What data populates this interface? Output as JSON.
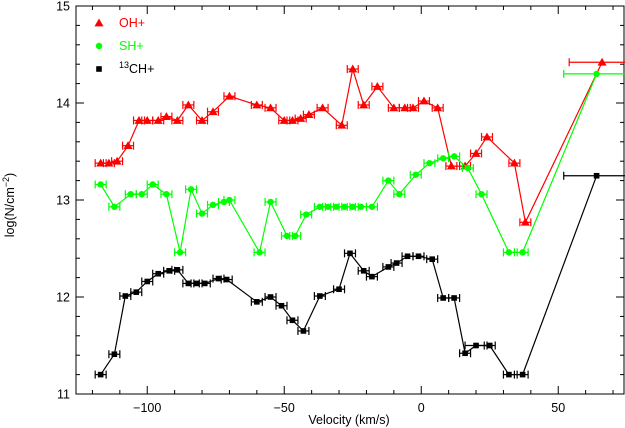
{
  "chart_data": {
    "type": "scatter",
    "xlabel": "Velocity (km/s)",
    "ylabel_prefix": "log(N/cm",
    "ylabel_sup": "−2",
    "ylabel_suffix": ")",
    "xlim": [
      -126,
      74
    ],
    "ylim": [
      11,
      15
    ],
    "xticks": [
      -100,
      -50,
      0,
      50
    ],
    "xtick_labels": [
      "−100",
      "−50",
      "0",
      "50"
    ],
    "yticks": [
      11,
      12,
      13,
      14,
      15
    ],
    "ytick_labels": [
      "11",
      "12",
      "13",
      "14",
      "15"
    ],
    "legend_position": "top-left",
    "series": [
      {
        "name": "OH+",
        "legend_sup": "",
        "legend_text": "OH+",
        "color": "#ff0000",
        "marker": "triangle",
        "half_width": 2,
        "x": [
          -117,
          -114,
          -111,
          -107,
          -103,
          -100,
          -96,
          -93,
          -89,
          -85,
          -80,
          -76,
          -70,
          -60,
          -55,
          -50,
          -47,
          -44,
          -41,
          -36,
          -29,
          -25,
          -21,
          -16,
          -10,
          -6,
          -3,
          1,
          6,
          11,
          16,
          20,
          24,
          34,
          38,
          66
        ],
        "y": [
          13.38,
          13.38,
          13.4,
          13.56,
          13.82,
          13.82,
          13.82,
          13.86,
          13.82,
          13.98,
          13.82,
          13.91,
          14.07,
          13.98,
          13.95,
          13.82,
          13.82,
          13.84,
          13.88,
          13.95,
          13.77,
          14.35,
          13.98,
          14.17,
          13.95,
          13.95,
          13.95,
          14.02,
          13.95,
          13.35,
          13.35,
          13.48,
          13.65,
          13.38,
          12.77,
          14.42
        ],
        "xerr": [
          [
            0,
            0
          ],
          [
            0,
            0
          ],
          [
            0,
            0
          ],
          [
            0,
            0
          ],
          [
            0,
            0
          ],
          [
            0,
            0
          ],
          [
            0,
            0
          ],
          [
            0,
            0
          ],
          [
            0,
            0
          ],
          [
            0,
            0
          ],
          [
            0,
            0
          ],
          [
            0,
            0
          ],
          [
            0,
            0
          ],
          [
            0,
            0
          ],
          [
            0,
            0
          ],
          [
            0,
            0
          ],
          [
            0,
            0
          ],
          [
            0,
            0
          ],
          [
            0,
            0
          ],
          [
            0,
            0
          ],
          [
            0,
            0
          ],
          [
            0,
            0
          ],
          [
            0,
            0
          ],
          [
            0,
            0
          ],
          [
            0,
            0
          ],
          [
            0,
            0
          ],
          [
            0,
            0
          ],
          [
            0,
            0
          ],
          [
            0,
            0
          ],
          [
            0,
            0
          ],
          [
            0,
            0
          ],
          [
            0,
            0
          ],
          [
            0,
            0
          ],
          [
            0,
            0
          ],
          [
            0,
            0
          ],
          [
            10,
            10
          ]
        ]
      },
      {
        "name": "SH+",
        "legend_sup": "",
        "legend_text": "SH+",
        "color": "#00ff00",
        "marker": "circle",
        "half_width": 2,
        "x": [
          -117,
          -112,
          -106,
          -102,
          -98,
          -93,
          -88,
          -84,
          -80,
          -76,
          -72,
          -70,
          -59,
          -55,
          -49,
          -46,
          -42,
          -37,
          -34,
          -31,
          -28,
          -25,
          -22,
          -18,
          -12,
          -8,
          -2,
          3,
          8,
          12,
          17,
          22,
          32,
          37,
          64
        ],
        "y": [
          13.16,
          12.93,
          13.06,
          13.06,
          13.16,
          13.06,
          12.46,
          13.11,
          12.86,
          12.95,
          12.98,
          13.0,
          12.46,
          12.98,
          12.63,
          12.63,
          12.85,
          12.93,
          12.93,
          12.93,
          12.93,
          12.93,
          12.93,
          12.93,
          13.2,
          13.06,
          13.26,
          13.38,
          13.43,
          13.45,
          13.33,
          13.06,
          12.46,
          12.46,
          14.3
        ],
        "xerr": [
          [
            0,
            0
          ],
          [
            0,
            0
          ],
          [
            0,
            0
          ],
          [
            0,
            0
          ],
          [
            0,
            0
          ],
          [
            0,
            0
          ],
          [
            0,
            0
          ],
          [
            0,
            0
          ],
          [
            0,
            0
          ],
          [
            0,
            0
          ],
          [
            0,
            0
          ],
          [
            0,
            0
          ],
          [
            0,
            0
          ],
          [
            0,
            0
          ],
          [
            0,
            0
          ],
          [
            0,
            0
          ],
          [
            0,
            0
          ],
          [
            0,
            0
          ],
          [
            0,
            0
          ],
          [
            0,
            0
          ],
          [
            0,
            0
          ],
          [
            0,
            0
          ],
          [
            0,
            0
          ],
          [
            0,
            0
          ],
          [
            0,
            0
          ],
          [
            0,
            0
          ],
          [
            0,
            0
          ],
          [
            0,
            0
          ],
          [
            0,
            0
          ],
          [
            0,
            0
          ],
          [
            0,
            0
          ],
          [
            0,
            0
          ],
          [
            0,
            0
          ],
          [
            0,
            0
          ],
          [
            10,
            10
          ]
        ]
      },
      {
        "name": "13CH+",
        "legend_sup": "13",
        "legend_text": "CH+",
        "color": "#000000",
        "marker": "square",
        "half_width": 2,
        "x": [
          -117,
          -112,
          -108,
          -104,
          -100,
          -96,
          -92,
          -89,
          -85,
          -82,
          -79,
          -74,
          -71,
          -60,
          -55,
          -51,
          -47,
          -43,
          -37,
          -30,
          -26,
          -21,
          -18,
          -12,
          -9,
          -5,
          -1,
          4,
          8,
          12,
          16,
          20,
          25,
          32,
          37,
          64
        ],
        "y": [
          11.2,
          11.41,
          12.01,
          12.05,
          12.16,
          12.24,
          12.27,
          12.28,
          12.14,
          12.14,
          12.14,
          12.19,
          12.18,
          11.95,
          12.0,
          11.91,
          11.76,
          11.65,
          12.01,
          12.08,
          12.45,
          12.27,
          12.21,
          12.31,
          12.35,
          12.42,
          12.42,
          12.39,
          11.99,
          11.99,
          11.42,
          11.5,
          11.5,
          11.2,
          11.2,
          13.25
        ],
        "xerr": [
          [
            0,
            0
          ],
          [
            0,
            0
          ],
          [
            0,
            0
          ],
          [
            0,
            0
          ],
          [
            0,
            0
          ],
          [
            0,
            0
          ],
          [
            0,
            0
          ],
          [
            0,
            0
          ],
          [
            0,
            0
          ],
          [
            0,
            0
          ],
          [
            0,
            0
          ],
          [
            0,
            0
          ],
          [
            0,
            0
          ],
          [
            0,
            0
          ],
          [
            0,
            0
          ],
          [
            0,
            0
          ],
          [
            0,
            0
          ],
          [
            0,
            0
          ],
          [
            0,
            0
          ],
          [
            0,
            0
          ],
          [
            0,
            0
          ],
          [
            0,
            0
          ],
          [
            0,
            0
          ],
          [
            0,
            0
          ],
          [
            0,
            0
          ],
          [
            0,
            0
          ],
          [
            0,
            0
          ],
          [
            0,
            0
          ],
          [
            0,
            0
          ],
          [
            0,
            0
          ],
          [
            0,
            0
          ],
          [
            2,
            2
          ],
          [
            0,
            0
          ],
          [
            0,
            0
          ],
          [
            0,
            0
          ],
          [
            10,
            10
          ]
        ]
      }
    ]
  }
}
